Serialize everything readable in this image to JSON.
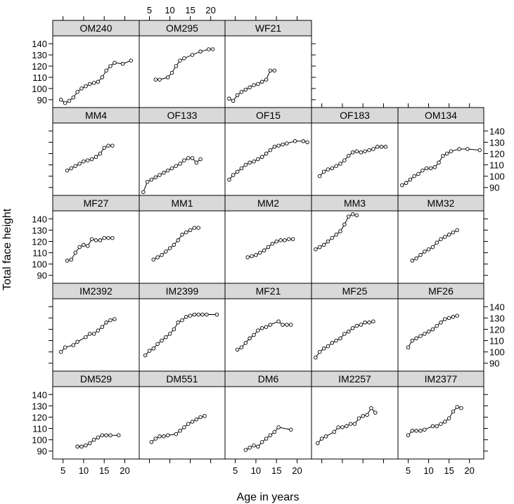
{
  "chart_data": {
    "type": "line",
    "style": {
      "strip_fill": "#d9d9d9",
      "line_color": "#000000",
      "marker": "open-circle"
    },
    "xlabel": "Age in years",
    "ylabel": "Total face height",
    "xlim": [
      2.5,
      23.5
    ],
    "ylim": [
      83,
      147
    ],
    "x_ticks": [
      5,
      10,
      15,
      20
    ],
    "y_ticks": [
      90,
      100,
      110,
      120,
      130,
      140
    ],
    "panels": [
      {
        "name": "OM240",
        "x": [
          4.5,
          5.5,
          6.5,
          7.5,
          8.5,
          9.5,
          10.5,
          11.5,
          12.5,
          13.5,
          14.5,
          15.5,
          16.5,
          17.5,
          19.5,
          21.5
        ],
        "y": [
          90,
          87,
          89,
          92,
          97,
          100,
          102,
          104,
          105,
          106,
          110,
          116,
          120,
          123,
          122,
          125
        ]
      },
      {
        "name": "OM295",
        "x": [
          6.5,
          7.5,
          9.5,
          10.5,
          11.5,
          12.5,
          13.5,
          15.5,
          17.5,
          19.5,
          20.5
        ],
        "y": [
          108,
          108,
          110,
          114,
          120,
          125,
          127,
          130,
          133,
          135,
          135
        ]
      },
      {
        "name": "WF21",
        "x": [
          3.5,
          4.5,
          5.5,
          6.5,
          7.5,
          8.5,
          9.5,
          10.5,
          11.5,
          12.5,
          13.5,
          14.5
        ],
        "y": [
          91,
          89,
          94,
          97,
          99,
          101,
          103,
          104,
          106,
          108,
          116,
          116
        ]
      },
      {
        "name": "MM4",
        "x": [
          6,
          7,
          8,
          9,
          10,
          11,
          12,
          13,
          14,
          15,
          16,
          17
        ],
        "y": [
          105,
          107,
          109,
          111,
          113,
          114,
          115,
          117,
          120,
          125,
          127,
          127
        ]
      },
      {
        "name": "OF133",
        "x": [
          3.5,
          4.5,
          5.5,
          6.5,
          7.5,
          8.5,
          9.5,
          10.5,
          11.5,
          12.5,
          13.5,
          14.5,
          15.5,
          16.5,
          17.5
        ],
        "y": [
          86,
          95,
          97,
          99,
          101,
          103,
          105,
          107,
          109,
          111,
          114,
          116,
          116,
          112,
          115
        ]
      },
      {
        "name": "OF15",
        "x": [
          3.5,
          4.5,
          5.5,
          6.5,
          7.5,
          8.5,
          9.5,
          10.5,
          11.5,
          12.5,
          13.5,
          14.5,
          15.5,
          16.5,
          17.5,
          19.5,
          21.5,
          22.5
        ],
        "y": [
          97,
          101,
          104,
          107,
          110,
          112,
          113,
          115,
          117,
          120,
          123,
          126,
          127,
          128,
          129,
          131,
          131,
          130
        ]
      },
      {
        "name": "OF183",
        "x": [
          4.5,
          5.5,
          6.5,
          7.5,
          8.5,
          9.5,
          10.5,
          11.5,
          12.5,
          13.5,
          14.5,
          15.5,
          16.5,
          17.5,
          18.5,
          19.5,
          20.5
        ],
        "y": [
          100,
          104,
          106,
          107,
          109,
          111,
          114,
          118,
          121,
          122,
          121,
          122,
          123,
          124,
          126,
          126,
          126
        ]
      },
      {
        "name": "OM134",
        "x": [
          3.5,
          4.5,
          5.5,
          6.5,
          7.5,
          8.5,
          9.5,
          10.5,
          11.5,
          12.5,
          13.5,
          14.5,
          15.5,
          17.5,
          19.5,
          22.5
        ],
        "y": [
          92,
          94,
          97,
          100,
          102,
          105,
          107,
          107,
          108,
          112,
          118,
          120,
          122,
          124,
          124,
          123
        ]
      },
      {
        "name": "MF27",
        "x": [
          6,
          7,
          8,
          9,
          10,
          11,
          12,
          13,
          14,
          15,
          16,
          17
        ],
        "y": [
          103,
          104,
          110,
          115,
          117,
          116,
          122,
          121,
          121,
          123,
          123,
          123
        ]
      },
      {
        "name": "MM1",
        "x": [
          6,
          7,
          8,
          9,
          10,
          11,
          12,
          13,
          14,
          15,
          16,
          17
        ],
        "y": [
          104,
          106,
          108,
          111,
          114,
          117,
          121,
          126,
          128,
          130,
          132,
          132
        ]
      },
      {
        "name": "MM2",
        "x": [
          8,
          9,
          10,
          11,
          12,
          13,
          14,
          15,
          16,
          17,
          18,
          19
        ],
        "y": [
          106,
          107,
          108,
          110,
          112,
          115,
          118,
          120,
          121,
          121,
          122,
          122
        ]
      },
      {
        "name": "MM3",
        "x": [
          3.5,
          4.5,
          5.5,
          6.5,
          7.5,
          8.5,
          9.5,
          10.5,
          11.5,
          12.5,
          13.5
        ],
        "y": [
          113,
          115,
          117,
          120,
          123,
          126,
          129,
          135,
          142,
          144,
          143
        ]
      },
      {
        "name": "MM32",
        "x": [
          6,
          7,
          8,
          9,
          10,
          11,
          12,
          13,
          14,
          15,
          16,
          17
        ],
        "y": [
          103,
          105,
          108,
          111,
          113,
          115,
          119,
          122,
          124,
          126,
          128,
          130
        ]
      },
      {
        "name": "IM2392",
        "x": [
          4.5,
          5.5,
          7.5,
          8.5,
          10.5,
          11.5,
          12.5,
          13.5,
          14.5,
          15.5,
          16.5,
          17.5
        ],
        "y": [
          100,
          104,
          106,
          109,
          113,
          116,
          116,
          119,
          122,
          126,
          128,
          129
        ]
      },
      {
        "name": "IM2399",
        "x": [
          4,
          5,
          6,
          7,
          8,
          9,
          10,
          11,
          12,
          13,
          14,
          15,
          16,
          17,
          18,
          19,
          21.5
        ],
        "y": [
          97,
          101,
          103,
          107,
          110,
          113,
          116,
          120,
          126,
          128,
          131,
          132,
          133,
          133,
          133,
          133,
          133
        ]
      },
      {
        "name": "MF21",
        "x": [
          5.5,
          6.5,
          7.5,
          8.5,
          9.5,
          10.5,
          11.5,
          12.5,
          13.5,
          15.5,
          16.5,
          17.5,
          18.5
        ],
        "y": [
          102,
          104,
          108,
          112,
          115,
          119,
          121,
          122,
          124,
          127,
          124,
          124,
          124
        ]
      },
      {
        "name": "MF25",
        "x": [
          3.5,
          4.5,
          5.5,
          6.5,
          7.5,
          8.5,
          9.5,
          10.5,
          11.5,
          12.5,
          13.5,
          14.5,
          15.5,
          16.5,
          17.5
        ],
        "y": [
          95,
          100,
          103,
          105,
          108,
          110,
          112,
          116,
          118,
          121,
          123,
          124,
          126,
          126,
          127
        ]
      },
      {
        "name": "MF26",
        "x": [
          5,
          6,
          7,
          8,
          9,
          10,
          11,
          12,
          13,
          14,
          15,
          16,
          17
        ],
        "y": [
          104,
          110,
          112,
          114,
          116,
          118,
          120,
          123,
          126,
          129,
          130,
          131,
          132
        ]
      },
      {
        "name": "DM529",
        "x": [
          8.5,
          9.5,
          10.5,
          11.5,
          12.5,
          13.5,
          14.5,
          15.5,
          16.5,
          18.5
        ],
        "y": [
          94,
          94,
          95,
          97,
          100,
          102,
          104,
          104,
          104,
          104
        ]
      },
      {
        "name": "DM551",
        "x": [
          5.5,
          6.5,
          7.5,
          8.5,
          9.5,
          11.5,
          12.5,
          13.5,
          14.5,
          15.5,
          16.5,
          17.5,
          18.5
        ],
        "y": [
          98,
          101,
          103,
          103,
          104,
          105,
          108,
          111,
          114,
          116,
          118,
          120,
          121
        ]
      },
      {
        "name": "DM6",
        "x": [
          7.5,
          8.5,
          9.5,
          10.5,
          11.5,
          12.5,
          13.5,
          14.5,
          15.5,
          18.5
        ],
        "y": [
          91,
          93,
          95,
          94,
          98,
          101,
          104,
          107,
          111,
          109
        ]
      },
      {
        "name": "IM2257",
        "x": [
          4,
          5,
          6,
          8,
          9,
          10,
          11,
          12,
          13,
          14,
          15,
          16,
          17,
          18
        ],
        "y": [
          97,
          101,
          103,
          107,
          111,
          111,
          112,
          114,
          114,
          119,
          121,
          122,
          128,
          124
        ]
      },
      {
        "name": "IM2377",
        "x": [
          5,
          6,
          7,
          8,
          9,
          11,
          12,
          13,
          14,
          15,
          16,
          17,
          18
        ],
        "y": [
          104,
          108,
          108,
          108,
          109,
          112,
          112,
          114,
          116,
          119,
          125,
          129,
          128
        ]
      }
    ]
  }
}
